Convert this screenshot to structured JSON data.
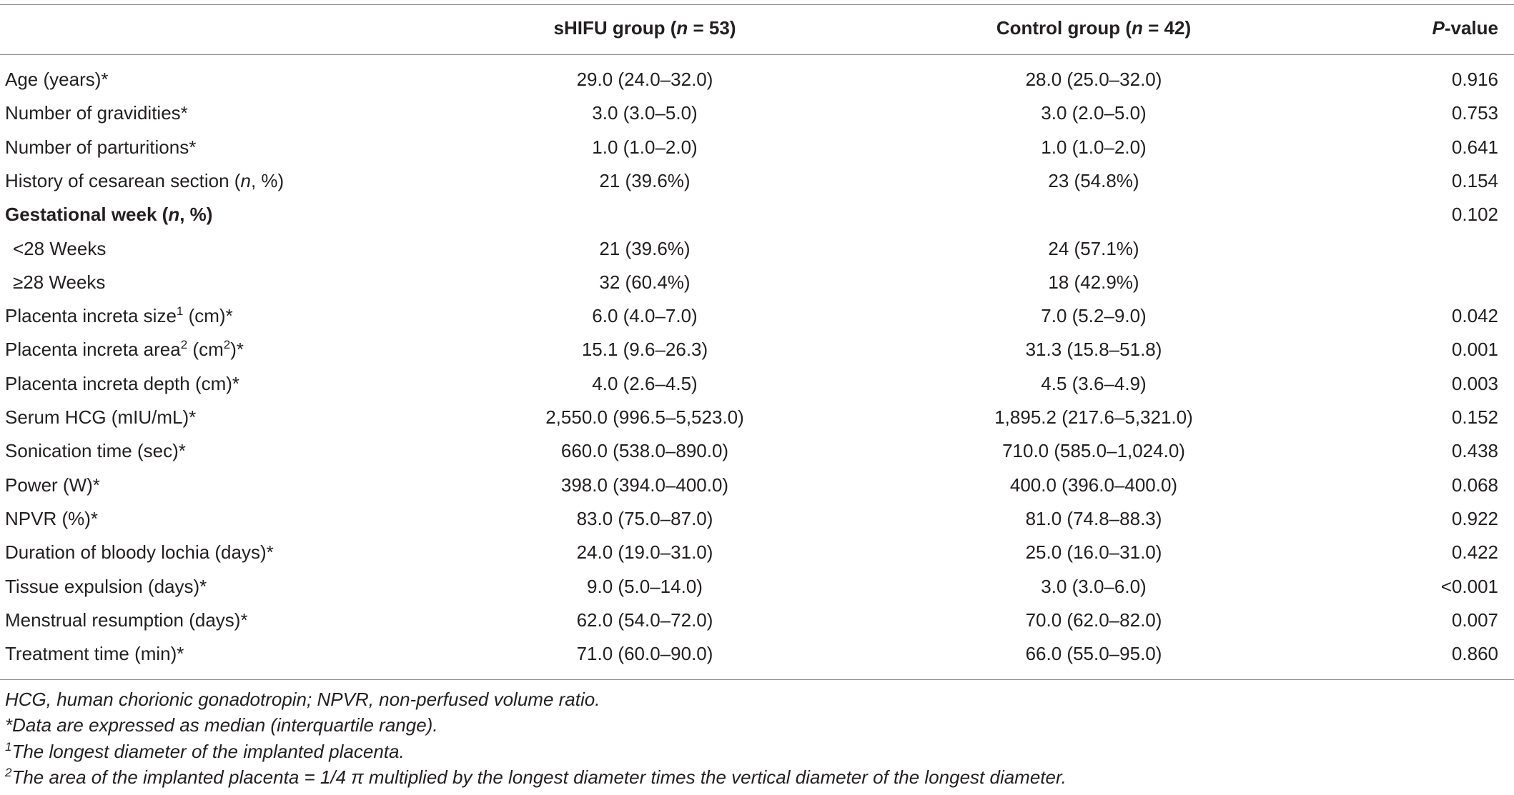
{
  "table": {
    "header": [
      [
        "sHIFU group (",
        "n",
        " = 53)"
      ],
      [
        "Control group (",
        "n",
        " = 42)"
      ],
      [
        "P",
        "-value"
      ]
    ],
    "rows": [
      {
        "label": [
          "Age (years)*"
        ],
        "values": [
          "29.0 (24.0–32.0)",
          "28.0 (25.0–32.0)",
          "0.916"
        ]
      },
      {
        "label": [
          "Number of gravidities*"
        ],
        "values": [
          "3.0 (3.0–5.0)",
          "3.0 (2.0–5.0)",
          "0.753"
        ]
      },
      {
        "label": [
          "Number of parturitions*"
        ],
        "values": [
          "1.0 (1.0–2.0)",
          "1.0 (1.0–2.0)",
          "0.641"
        ]
      },
      {
        "label": [
          "History of cesarean section (",
          "n",
          ", %)"
        ],
        "values": [
          "21 (39.6%)",
          "23 (54.8%)",
          "0.154"
        ]
      },
      {
        "label": [
          "Gestational week (",
          "n",
          ", %)"
        ],
        "values": [
          "0.102"
        ]
      },
      {
        "label": [
          "<28 Weeks"
        ],
        "values": [
          "21 (39.6%)",
          "24 (57.1%)"
        ]
      },
      {
        "label": [
          "≥28 Weeks"
        ],
        "values": [
          "32 (60.4%)",
          "18 (42.9%)"
        ]
      },
      {
        "label": [
          "Placenta increta size",
          "1",
          " (cm)*"
        ],
        "values": [
          "6.0 (4.0–7.0)",
          "7.0 (5.2–9.0)",
          "0.042"
        ]
      },
      {
        "label": [
          "Placenta increta area",
          "2",
          " (cm",
          "2",
          ")*"
        ],
        "values": [
          "15.1 (9.6–26.3)",
          "31.3 (15.8–51.8)",
          "0.001"
        ]
      },
      {
        "label": [
          "Placenta increta depth (cm)*"
        ],
        "values": [
          "4.0 (2.6–4.5)",
          "4.5 (3.6–4.9)",
          "0.003"
        ]
      },
      {
        "label": [
          "Serum HCG (mIU/mL)*"
        ],
        "values": [
          "2,550.0 (996.5–5,523.0)",
          "1,895.2 (217.6–5,321.0)",
          "0.152"
        ]
      },
      {
        "label": [
          "Sonication time (sec)*"
        ],
        "values": [
          "660.0 (538.0–890.0)",
          "710.0 (585.0–1,024.0)",
          "0.438"
        ]
      },
      {
        "label": [
          "Power (W)*"
        ],
        "values": [
          "398.0 (394.0–400.0)",
          "400.0 (396.0–400.0)",
          "0.068"
        ]
      },
      {
        "label": [
          "NPVR (%)*"
        ],
        "values": [
          "83.0 (75.0–87.0)",
          "81.0 (74.8–88.3)",
          "0.922"
        ]
      },
      {
        "label": [
          "Duration of bloody lochia (days)*"
        ],
        "values": [
          "24.0 (19.0–31.0)",
          "25.0 (16.0–31.0)",
          "0.422"
        ]
      },
      {
        "label": [
          "Tissue expulsion (days)*"
        ],
        "values": [
          "9.0 (5.0–14.0)",
          "3.0 (3.0–6.0)",
          "<0.001"
        ]
      },
      {
        "label": [
          "Menstrual resumption (days)*"
        ],
        "values": [
          "62.0 (54.0–72.0)",
          "70.0 (62.0–82.0)",
          "0.007"
        ]
      },
      {
        "label": [
          "Treatment time (min)*"
        ],
        "values": [
          "71.0 (60.0–90.0)",
          "66.0 (55.0–95.0)",
          "0.860"
        ]
      }
    ]
  },
  "footnotes": [
    [
      "HCG, human chorionic gonadotropin; NPVR, non-perfused volume ratio."
    ],
    [
      "*Data are expressed as median (interquartile range)."
    ],
    [
      "1",
      "The longest diameter of the implanted placenta."
    ],
    [
      "2",
      "The area of the implanted placenta = 1/4 π multiplied by the longest diameter times the vertical diameter of the longest diameter."
    ]
  ]
}
